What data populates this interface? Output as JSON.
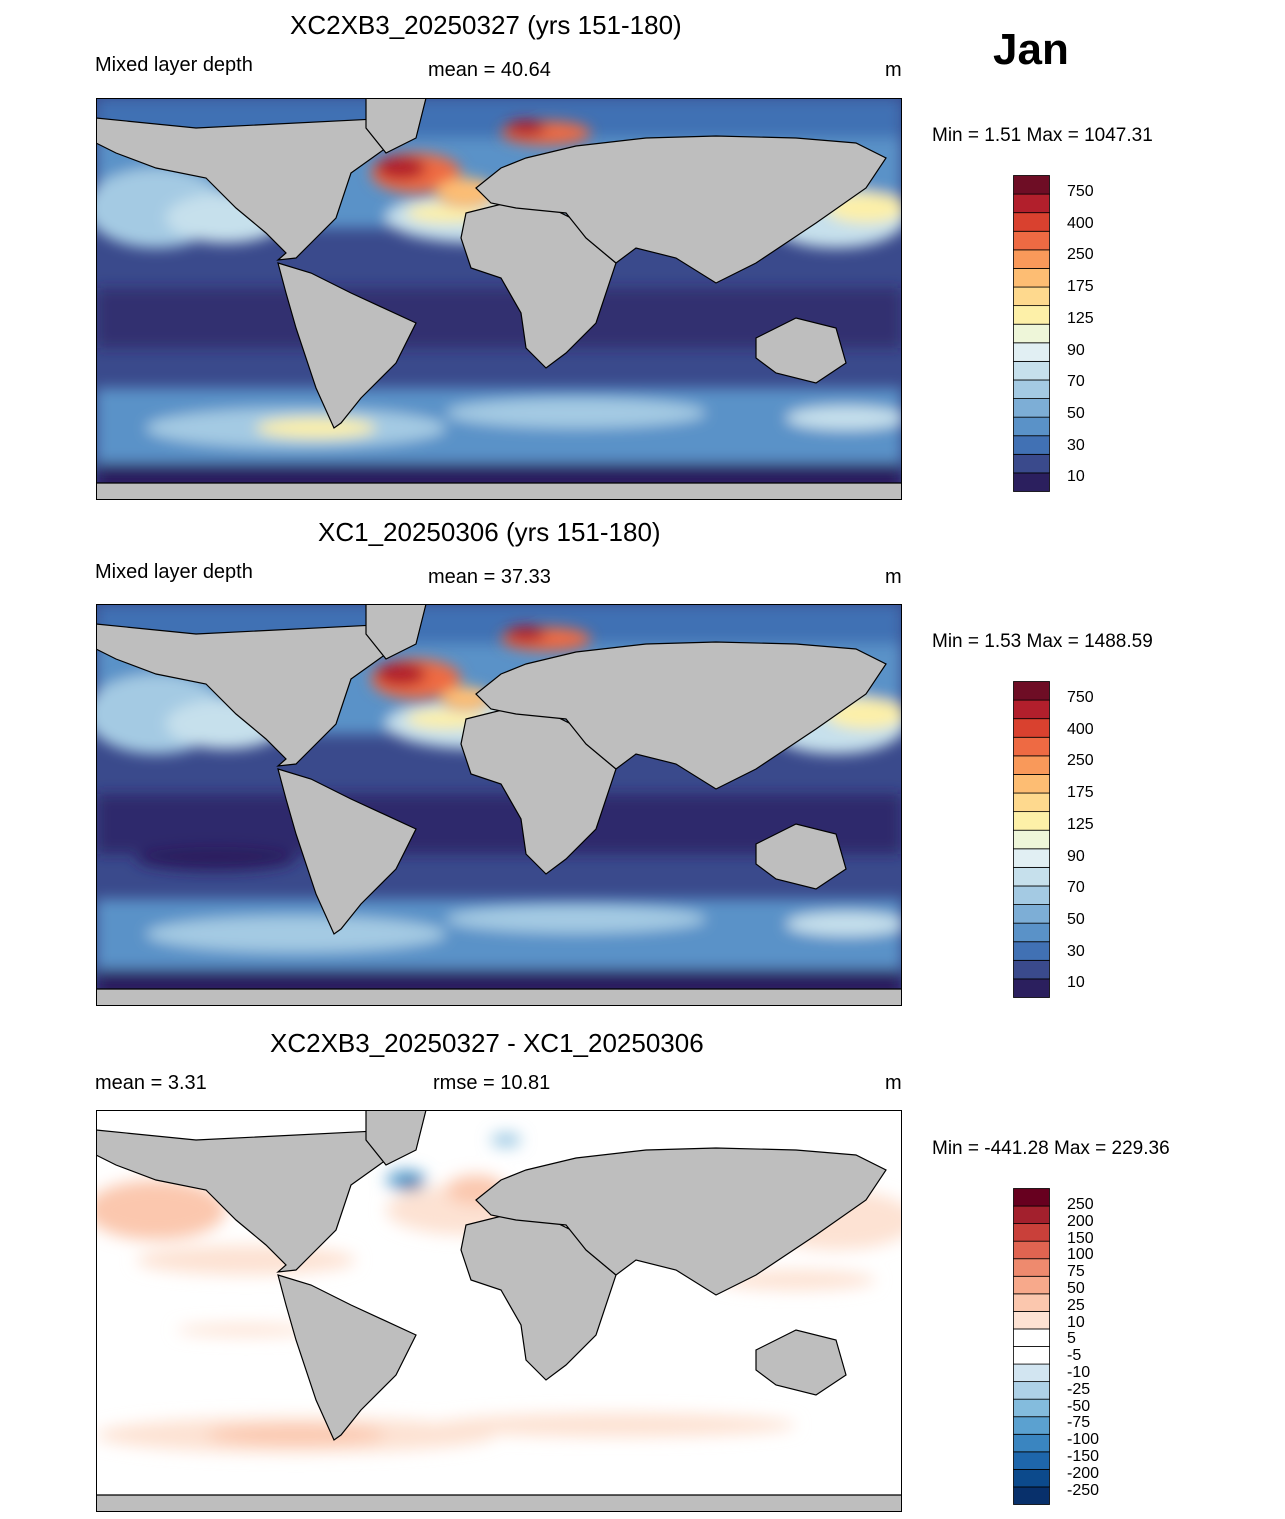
{
  "month": "Jan",
  "panels": [
    {
      "title": "XC2XB3_20250327 (yrs 151-180)",
      "left_label": "Mixed layer depth",
      "center_label": "mean =  40.64",
      "units": "m",
      "minmax": "Min =    1.51 Max = 1047.31",
      "colorbar_labels": [
        "750",
        "400",
        "250",
        "175",
        "125",
        "90",
        "70",
        "50",
        "30",
        "10"
      ]
    },
    {
      "title": "XC1_20250306 (yrs 151-180)",
      "left_label": "Mixed layer depth",
      "center_label": "mean =  37.33",
      "units": "m",
      "minmax": "Min =    1.53 Max = 1488.59",
      "colorbar_labels": [
        "750",
        "400",
        "250",
        "175",
        "125",
        "90",
        "70",
        "50",
        "30",
        "10"
      ]
    },
    {
      "title": "XC2XB3_20250327 - XC1_20250306",
      "left_label": "mean =   3.31",
      "center_label": "rmse =  10.81",
      "units": "m",
      "minmax": "Min = -441.28 Max = 229.36",
      "colorbar_labels": [
        "250",
        "200",
        "150",
        "100",
        "75",
        "50",
        "25",
        "10",
        "5",
        "-5",
        "-10",
        "-25",
        "-50",
        "-75",
        "-100",
        "-150",
        "-200",
        "-250"
      ]
    }
  ],
  "colors": {
    "land": "#bebebe",
    "mld_scale": [
      "#2b1f5e",
      "#3a4a8c",
      "#4171b4",
      "#5a92c8",
      "#7daed6",
      "#a4cae3",
      "#c6e0ec",
      "#e1eff3",
      "#eef6d9",
      "#fdf0a8",
      "#fed98e",
      "#fdbd73",
      "#f9995a",
      "#ee6a43",
      "#d9412f",
      "#b21f2c",
      "#6e0d25"
    ],
    "diff_scale": [
      "#08306b",
      "#0c4a8c",
      "#1e66ab",
      "#3a85c0",
      "#5ba1d0",
      "#84bcdd",
      "#aed1e7",
      "#d2e5f1",
      "#ffffff",
      "#ffffff",
      "#fde2d3",
      "#fbc7ae",
      "#f7a98b",
      "#ee8a6e",
      "#e06451",
      "#c9403a",
      "#a3202d",
      "#67001f"
    ]
  }
}
